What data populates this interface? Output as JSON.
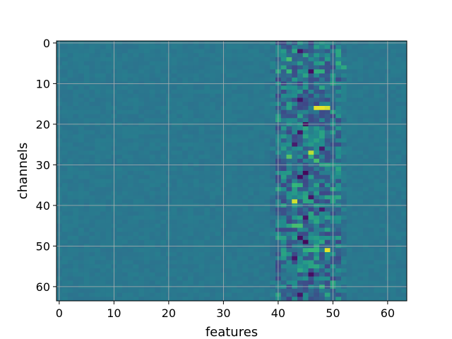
{
  "chart_data": {
    "type": "heatmap",
    "title": "",
    "xlabel": "features",
    "ylabel": "channels",
    "colormap": "viridis",
    "n_rows": 64,
    "n_cols": 64,
    "xlim": [
      -0.5,
      63.5
    ],
    "ylim": [
      63.5,
      -0.5
    ],
    "xticks": [
      0,
      10,
      20,
      30,
      40,
      50,
      60
    ],
    "yticks": [
      0,
      10,
      20,
      30,
      40,
      50,
      60
    ],
    "grid": true,
    "value_range": [
      -1,
      1
    ],
    "background_value": 0.0,
    "active_feature_range": [
      39,
      52
    ],
    "hotspots": [
      {
        "channel": 16,
        "feature": 47,
        "value": 0.95
      },
      {
        "channel": 16,
        "feature": 48,
        "value": 0.95
      },
      {
        "channel": 16,
        "feature": 49,
        "value": 0.9
      },
      {
        "channel": 27,
        "feature": 46,
        "value": 0.85
      },
      {
        "channel": 39,
        "feature": 43,
        "value": 0.9
      },
      {
        "channel": 51,
        "feature": 49,
        "value": 0.95
      },
      {
        "channel": 45,
        "feature": 43,
        "value": 0.55
      },
      {
        "channel": 45,
        "feature": 44,
        "value": 0.55
      },
      {
        "channel": 35,
        "feature": 43,
        "value": 0.5
      },
      {
        "channel": 35,
        "feature": 44,
        "value": 0.45
      },
      {
        "channel": 28,
        "feature": 42,
        "value": 0.6
      },
      {
        "channel": 28,
        "feature": 46,
        "value": 0.45
      },
      {
        "channel": 29,
        "feature": 47,
        "value": 0.55
      },
      {
        "channel": 51,
        "feature": 45,
        "value": 0.45
      },
      {
        "channel": 51,
        "feature": 46,
        "value": 0.5
      },
      {
        "channel": 51,
        "feature": 47,
        "value": 0.5
      },
      {
        "channel": 4,
        "feature": 42,
        "value": 0.55
      },
      {
        "channel": 7,
        "feature": 42,
        "value": 0.5
      },
      {
        "channel": 7,
        "feature": 47,
        "value": 0.45
      },
      {
        "channel": 7,
        "feature": 48,
        "value": 0.45
      },
      {
        "channel": 5,
        "feature": 51,
        "value": 0.45
      },
      {
        "channel": 6,
        "feature": 52,
        "value": 0.4
      },
      {
        "channel": 60,
        "feature": 48,
        "value": 0.45
      },
      {
        "channel": 59,
        "feature": 50,
        "value": 0.4
      },
      {
        "channel": 18,
        "feature": 44,
        "value": 0.35
      },
      {
        "channel": 38,
        "feature": 45,
        "value": 0.4
      },
      {
        "channel": 55,
        "feature": 47,
        "value": 0.4
      },
      {
        "channel": 0,
        "feature": 44,
        "value": 0.3
      },
      {
        "channel": 0,
        "feature": 48,
        "value": 0.3
      },
      {
        "channel": 11,
        "feature": 45,
        "value": 0.3
      },
      {
        "channel": 2,
        "feature": 44,
        "value": -0.85
      },
      {
        "channel": 7,
        "feature": 46,
        "value": -0.9
      },
      {
        "channel": 14,
        "feature": 44,
        "value": -0.85
      },
      {
        "channel": 20,
        "feature": 45,
        "value": -0.9
      },
      {
        "channel": 22,
        "feature": 44,
        "value": -0.85
      },
      {
        "channel": 25,
        "feature": 43,
        "value": -0.8
      },
      {
        "channel": 32,
        "feature": 45,
        "value": -0.95
      },
      {
        "channel": 33,
        "feature": 44,
        "value": -0.9
      },
      {
        "channel": 38,
        "feature": 46,
        "value": -0.85
      },
      {
        "channel": 43,
        "feature": 45,
        "value": -0.85
      },
      {
        "channel": 48,
        "feature": 44,
        "value": -0.9
      },
      {
        "channel": 49,
        "feature": 45,
        "value": -0.95
      },
      {
        "channel": 53,
        "feature": 43,
        "value": -0.85
      },
      {
        "channel": 57,
        "feature": 46,
        "value": -0.9
      },
      {
        "channel": 62,
        "feature": 44,
        "value": -0.85
      },
      {
        "channel": 41,
        "feature": 48,
        "value": -0.8
      },
      {
        "channel": 26,
        "feature": 48,
        "value": -0.8
      }
    ]
  }
}
